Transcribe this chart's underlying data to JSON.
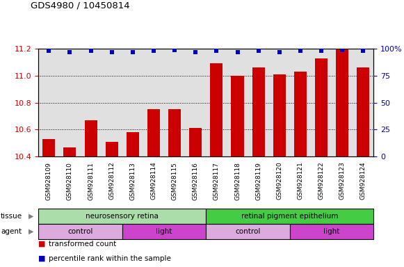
{
  "title": "GDS4980 / 10450814",
  "samples": [
    "GSM928109",
    "GSM928110",
    "GSM928111",
    "GSM928112",
    "GSM928113",
    "GSM928114",
    "GSM928115",
    "GSM928116",
    "GSM928117",
    "GSM928118",
    "GSM928119",
    "GSM928120",
    "GSM928121",
    "GSM928122",
    "GSM928123",
    "GSM928124"
  ],
  "transformed_counts": [
    10.53,
    10.47,
    10.67,
    10.51,
    10.58,
    10.75,
    10.75,
    10.61,
    11.09,
    11.0,
    11.06,
    11.01,
    11.03,
    11.13,
    11.2,
    11.06
  ],
  "percentile_ranks": [
    98,
    97,
    98,
    97,
    97,
    98,
    99,
    97,
    98,
    97,
    98,
    97,
    98,
    98,
    99,
    98
  ],
  "ylim_left": [
    10.4,
    11.2
  ],
  "ylim_right": [
    0,
    100
  ],
  "yticks_left": [
    10.4,
    10.6,
    10.8,
    11.0,
    11.2
  ],
  "yticks_right": [
    0,
    25,
    50,
    75,
    100
  ],
  "bar_color": "#cc0000",
  "dot_color": "#0000bb",
  "grid_color": "#000000",
  "bg_color": "#e0e0e0",
  "tissue_groups": [
    {
      "label": "neurosensory retina",
      "start": 0,
      "end": 8,
      "color": "#aaddaa"
    },
    {
      "label": "retinal pigment epithelium",
      "start": 8,
      "end": 16,
      "color": "#44cc44"
    }
  ],
  "agent_groups": [
    {
      "label": "control",
      "start": 0,
      "end": 4,
      "color": "#ddaadd"
    },
    {
      "label": "light",
      "start": 4,
      "end": 8,
      "color": "#cc44cc"
    },
    {
      "label": "control",
      "start": 8,
      "end": 12,
      "color": "#ddaadd"
    },
    {
      "label": "light",
      "start": 12,
      "end": 16,
      "color": "#cc44cc"
    }
  ],
  "bar_color_legend": "#cc0000",
  "dot_color_legend": "#0000bb"
}
